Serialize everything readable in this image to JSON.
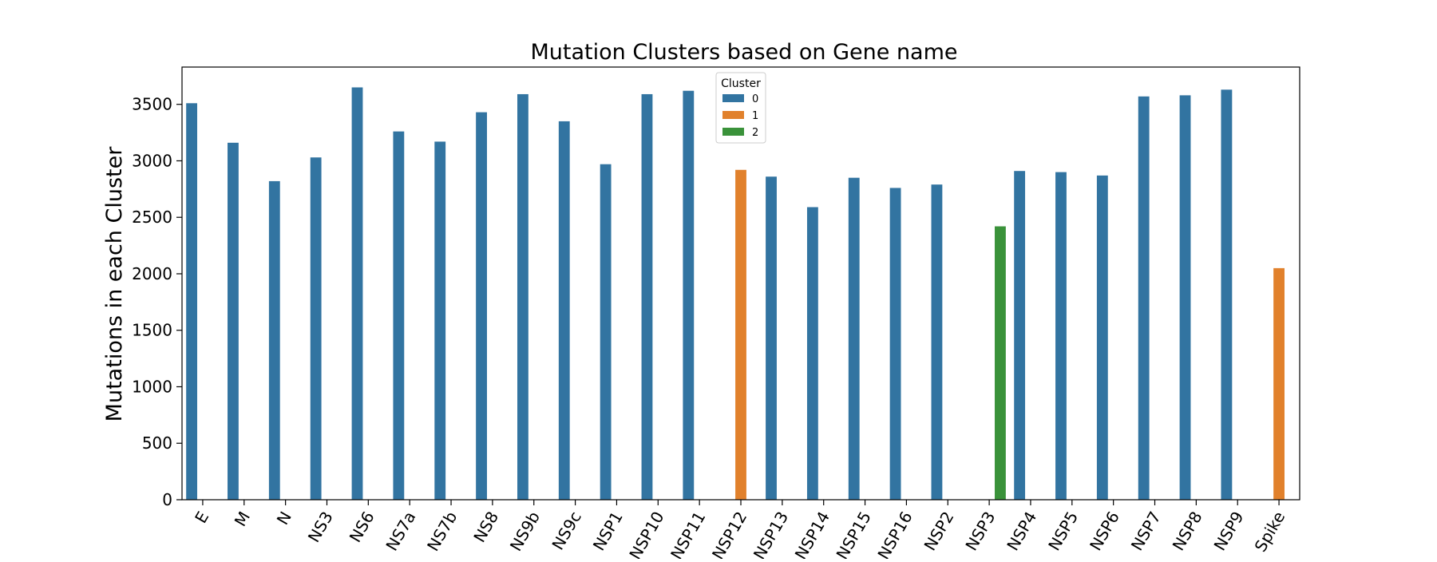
{
  "chart_data": {
    "type": "bar",
    "title": "Mutation Clusters based on Gene name",
    "xlabel": "",
    "ylabel": "Mutations in each Cluster",
    "ylim": [
      0,
      3830
    ],
    "yticks": [
      0,
      500,
      1000,
      1500,
      2000,
      2500,
      3000,
      3500
    ],
    "grid": false,
    "legend": {
      "title": "Cluster",
      "placement": "top-center"
    },
    "categories": [
      "E",
      "M",
      "N",
      "NS3",
      "NS6",
      "NS7a",
      "NS7b",
      "NS8",
      "NS9b",
      "NS9c",
      "NSP1",
      "NSP10",
      "NSP11",
      "NSP12",
      "NSP13",
      "NSP14",
      "NSP15",
      "NSP16",
      "NSP2",
      "NSP3",
      "NSP4",
      "NSP5",
      "NSP6",
      "NSP7",
      "NSP8",
      "NSP9",
      "Spike"
    ],
    "series": [
      {
        "name": "0",
        "color": "#3274a1",
        "values": [
          3510,
          3160,
          2820,
          3030,
          3650,
          3260,
          3170,
          3430,
          3590,
          3350,
          2970,
          3590,
          3620,
          null,
          2860,
          2590,
          2850,
          2760,
          2790,
          null,
          2910,
          2900,
          2870,
          3570,
          3580,
          3630,
          null
        ]
      },
      {
        "name": "1",
        "color": "#e1812c",
        "values": [
          null,
          null,
          null,
          null,
          null,
          null,
          null,
          null,
          null,
          null,
          null,
          null,
          null,
          2920,
          null,
          null,
          null,
          null,
          null,
          null,
          null,
          null,
          null,
          null,
          null,
          null,
          2050
        ]
      },
      {
        "name": "2",
        "color": "#3a923a",
        "values": [
          null,
          null,
          null,
          null,
          null,
          null,
          null,
          null,
          null,
          null,
          null,
          null,
          null,
          null,
          null,
          null,
          null,
          null,
          null,
          2420,
          null,
          null,
          null,
          null,
          null,
          null,
          null
        ]
      }
    ]
  }
}
